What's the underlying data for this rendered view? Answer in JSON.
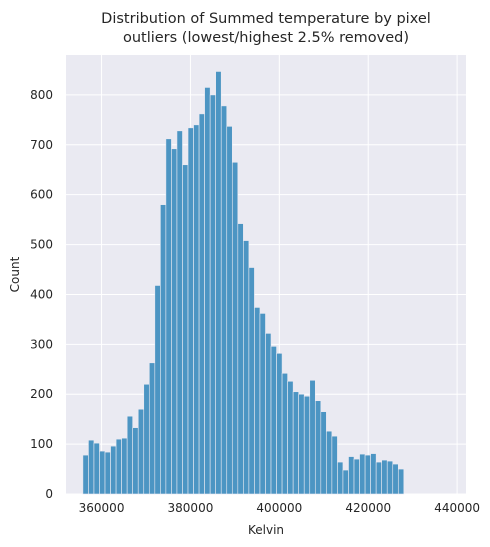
{
  "chart_data": {
    "type": "histogram",
    "title_lines": [
      "Distribution of Summed temperature by pixel",
      "outliers (lowest/highest 2.5% removed)"
    ],
    "xlabel": "Kelvin",
    "ylabel": "Count",
    "xlim": [
      352000,
      442000
    ],
    "ylim": [
      0,
      880
    ],
    "xticks": [
      360000,
      380000,
      400000,
      420000,
      440000
    ],
    "xtick_labels": [
      "360000",
      "380000",
      "400000",
      "420000",
      "440000"
    ],
    "yticks": [
      0,
      100,
      200,
      300,
      400,
      500,
      600,
      700,
      800
    ],
    "ytick_labels": [
      "0",
      "100",
      "200",
      "300",
      "400",
      "500",
      "600",
      "700",
      "800"
    ],
    "bin_start": 355800,
    "bin_width": 1245,
    "values": [
      78,
      108,
      102,
      86,
      84,
      96,
      110,
      112,
      156,
      133,
      170,
      220,
      263,
      418,
      580,
      712,
      692,
      728,
      660,
      734,
      740,
      762,
      815,
      800,
      847,
      778,
      737,
      665,
      542,
      508,
      454,
      374,
      362,
      322,
      296,
      282,
      242,
      226,
      205,
      200,
      196,
      228,
      187,
      165,
      126,
      116,
      64,
      48,
      75,
      70,
      80,
      78,
      81,
      64,
      68,
      66,
      60,
      50
    ],
    "grid": true,
    "bar_color": "#4c95c3",
    "background_color": "#eaeaf2"
  }
}
